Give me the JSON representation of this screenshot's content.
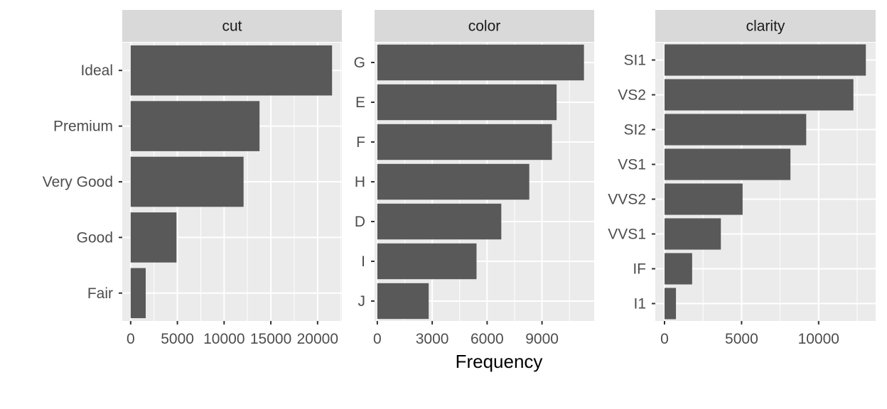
{
  "chart_data": {
    "type": "bar",
    "orientation": "horizontal",
    "xlabel": "Frequency",
    "colors": {
      "bar": "#595959",
      "panel_background": "#ebebeb",
      "strip_background": "#d9d9d9",
      "grid": "#ffffff"
    },
    "panels": [
      {
        "title": "cut",
        "categories": [
          "Ideal",
          "Premium",
          "Very Good",
          "Good",
          "Fair"
        ],
        "values": [
          21551,
          13791,
          12082,
          4906,
          1610
        ],
        "xlim": [
          -900,
          22600
        ],
        "xticks": [
          0,
          5000,
          10000,
          15000,
          20000
        ],
        "xtick_labels": [
          "0",
          "5000",
          "10000",
          "15000",
          "20000"
        ]
      },
      {
        "title": "color",
        "categories": [
          "G",
          "E",
          "F",
          "H",
          "D",
          "I",
          "J"
        ],
        "values": [
          11292,
          9797,
          9542,
          8304,
          6775,
          5422,
          2808
        ],
        "xlim": [
          -150,
          11850
        ],
        "xticks": [
          0,
          3000,
          6000,
          9000
        ],
        "xtick_labels": [
          "0",
          "3000",
          "6000",
          "9000"
        ]
      },
      {
        "title": "clarity",
        "categories": [
          "SI1",
          "VS2",
          "SI2",
          "VS1",
          "VVS2",
          "VVS1",
          "IF",
          "I1"
        ],
        "values": [
          13065,
          12258,
          9194,
          8171,
          5066,
          3655,
          1790,
          741
        ],
        "xlim": [
          -600,
          13700
        ],
        "xticks": [
          0,
          5000,
          10000
        ],
        "xtick_labels": [
          "0",
          "5000",
          "10000"
        ]
      }
    ]
  }
}
